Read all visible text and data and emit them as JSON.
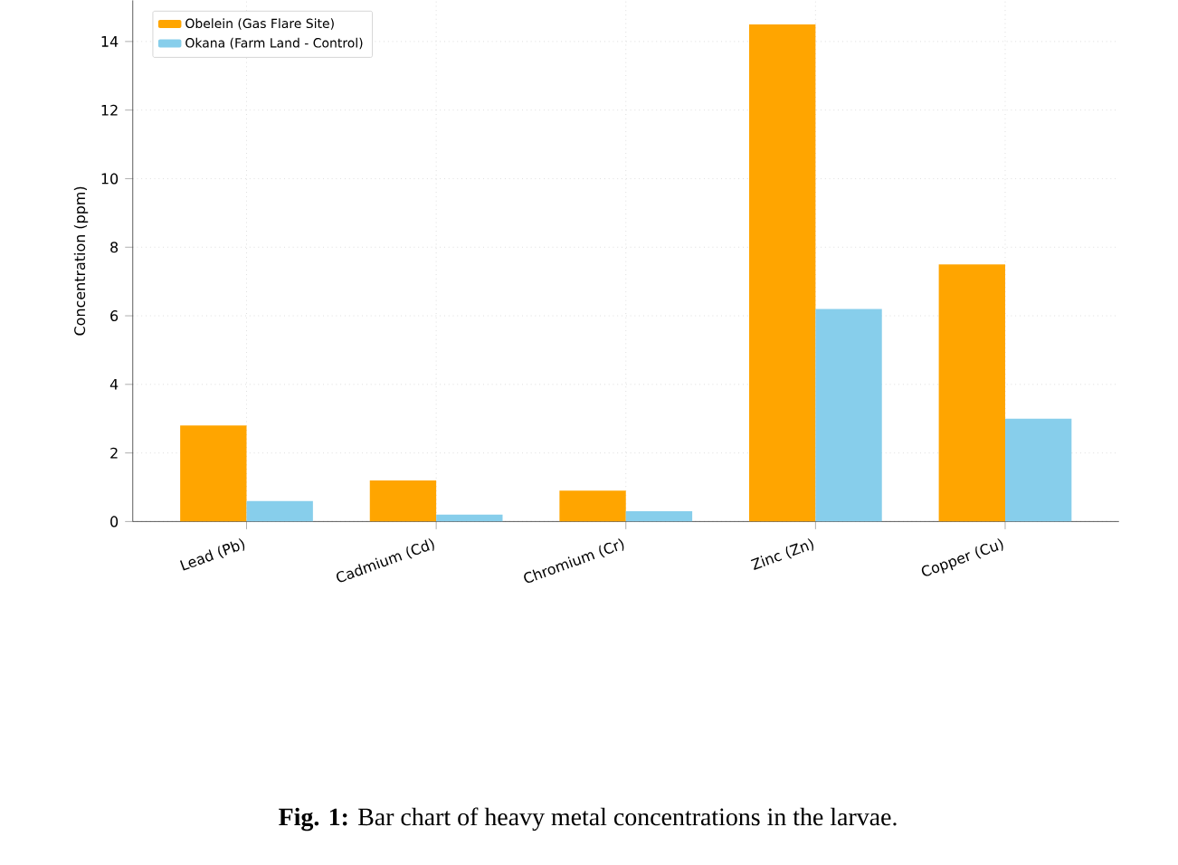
{
  "chart_data": {
    "type": "bar",
    "ylabel": "Concentration (ppm)",
    "categories": [
      "Lead (Pb)",
      "Cadmium (Cd)",
      "Chromium (Cr)",
      "Zinc (Zn)",
      "Copper (Cu)"
    ],
    "series": [
      {
        "name": "Obelein (Gas Flare Site)",
        "color": "#ffa500",
        "values": [
          2.8,
          1.2,
          0.9,
          14.5,
          7.5
        ]
      },
      {
        "name": "Okana (Farm Land - Control)",
        "color": "#87ceeb",
        "values": [
          0.6,
          0.2,
          0.3,
          6.2,
          3.0
        ]
      }
    ],
    "ylim": [
      0,
      15.2
    ],
    "yticks": [
      0,
      2,
      4,
      6,
      8,
      10,
      12,
      14
    ],
    "grid": true,
    "legend": "top left",
    "annotations": [
      "**Fig. 1:** Bar chart of heavy metal concentrations in the larvae."
    ]
  }
}
